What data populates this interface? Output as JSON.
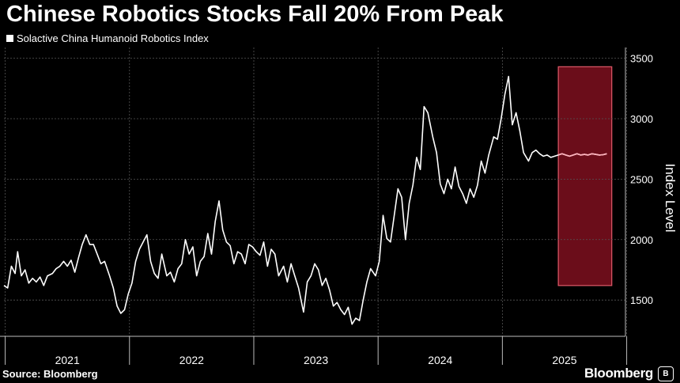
{
  "header": {
    "title": "Chinese Robotics Stocks Fall 20% From Peak",
    "legend_label": "Solactive China Humanoid Robotics Index"
  },
  "footer": {
    "source": "Source: Bloomberg",
    "brand": "Bloomberg",
    "brand_badge": "B"
  },
  "colors": {
    "line": "#ffffff",
    "highlight_fill": "#6b0d1a",
    "highlight_stroke": "#e05a6a",
    "highlight_line": "#ffb3bd"
  },
  "chart_data": {
    "type": "line",
    "title": "Chinese Robotics Stocks Fall 20% From Peak",
    "xlabel": "",
    "ylabel": "Index Level",
    "ylim": [
      1200,
      3550
    ],
    "xlim": [
      2020.99,
      2025.99
    ],
    "yticks": [
      1500,
      2000,
      2500,
      3000,
      3500
    ],
    "xticks": [
      {
        "label": "2021",
        "value": 2021.5
      },
      {
        "label": "2022",
        "value": 2022.5
      },
      {
        "label": "2023",
        "value": 2023.5
      },
      {
        "label": "2024",
        "value": 2024.5
      },
      {
        "label": "2025",
        "value": 2025.5
      }
    ],
    "year_boundaries": [
      2021,
      2022,
      2023,
      2024,
      2025,
      2026
    ],
    "grid": true,
    "legend": "top-left",
    "highlight": {
      "x0": 2025.45,
      "x1": 2025.88,
      "y0": 1620,
      "y1": 3430
    },
    "series": [
      {
        "name": "Solactive China Humanoid Robotics Index",
        "x": [
          2020.99,
          2021.02,
          2021.05,
          2021.08,
          2021.1,
          2021.13,
          2021.16,
          2021.19,
          2021.22,
          2021.25,
          2021.28,
          2021.31,
          2021.34,
          2021.38,
          2021.41,
          2021.44,
          2021.47,
          2021.5,
          2021.53,
          2021.56,
          2021.59,
          2021.62,
          2021.65,
          2021.68,
          2021.71,
          2021.74,
          2021.77,
          2021.8,
          2021.84,
          2021.87,
          2021.9,
          2021.93,
          2021.96,
          2021.99,
          2022.02,
          2022.05,
          2022.08,
          2022.11,
          2022.14,
          2022.17,
          2022.2,
          2022.23,
          2022.26,
          2022.3,
          2022.33,
          2022.36,
          2022.39,
          2022.42,
          2022.45,
          2022.48,
          2022.51,
          2022.54,
          2022.57,
          2022.6,
          2022.63,
          2022.66,
          2022.69,
          2022.72,
          2022.75,
          2022.78,
          2022.81,
          2022.84,
          2022.87,
          2022.9,
          2022.93,
          2022.96,
          2022.99,
          2023.02,
          2023.05,
          2023.08,
          2023.11,
          2023.14,
          2023.17,
          2023.2,
          2023.24,
          2023.27,
          2023.3,
          2023.33,
          2023.36,
          2023.4,
          2023.43,
          2023.46,
          2023.49,
          2023.52,
          2023.55,
          2023.58,
          2023.61,
          2023.64,
          2023.67,
          2023.7,
          2023.73,
          2023.76,
          2023.79,
          2023.82,
          2023.85,
          2023.88,
          2023.91,
          2023.94,
          2023.98,
          2024.01,
          2024.04,
          2024.07,
          2024.1,
          2024.13,
          2024.16,
          2024.19,
          2024.22,
          2024.25,
          2024.28,
          2024.31,
          2024.34,
          2024.37,
          2024.4,
          2024.44,
          2024.47,
          2024.5,
          2024.53,
          2024.56,
          2024.59,
          2024.62,
          2024.65,
          2024.68,
          2024.71,
          2024.74,
          2024.77,
          2024.8,
          2024.83,
          2024.86,
          2024.89,
          2024.93,
          2024.96,
          2024.99,
          2025.02,
          2025.05,
          2025.08,
          2025.11,
          2025.14,
          2025.17,
          2025.21,
          2025.24,
          2025.27,
          2025.3,
          2025.33,
          2025.36,
          2025.39,
          2025.42,
          2025.45,
          2025.48,
          2025.51,
          2025.54,
          2025.57,
          2025.6,
          2025.63,
          2025.66,
          2025.69,
          2025.72,
          2025.75,
          2025.78,
          2025.81,
          2025.84
        ],
        "values": [
          1620,
          1600,
          1780,
          1720,
          1900,
          1700,
          1750,
          1640,
          1680,
          1650,
          1690,
          1620,
          1700,
          1720,
          1760,
          1780,
          1820,
          1780,
          1830,
          1730,
          1850,
          1960,
          2040,
          1960,
          1960,
          1880,
          1800,
          1820,
          1700,
          1600,
          1450,
          1390,
          1420,
          1550,
          1640,
          1820,
          1920,
          1980,
          2040,
          1820,
          1720,
          1680,
          1880,
          1700,
          1730,
          1650,
          1760,
          1800,
          2000,
          1880,
          1940,
          1700,
          1820,
          1860,
          2050,
          1880,
          2150,
          2320,
          2080,
          1980,
          1950,
          1800,
          1900,
          1880,
          1800,
          1960,
          1940,
          1900,
          1870,
          1980,
          1780,
          1920,
          1880,
          1700,
          1780,
          1650,
          1800,
          1700,
          1600,
          1400,
          1650,
          1700,
          1800,
          1750,
          1620,
          1680,
          1580,
          1450,
          1480,
          1420,
          1380,
          1440,
          1300,
          1350,
          1330,
          1500,
          1650,
          1760,
          1700,
          1820,
          2200,
          2010,
          1980,
          2200,
          2420,
          2350,
          2000,
          2300,
          2450,
          2680,
          2580,
          3100,
          3050,
          2850,
          2720,
          2460,
          2380,
          2500,
          2420,
          2600,
          2440,
          2380,
          2300,
          2420,
          2350,
          2450,
          2650,
          2550,
          2700,
          2850,
          2830,
          3000,
          3200,
          3350,
          2950,
          3050,
          2900,
          2720,
          2650,
          2720,
          2740,
          2710,
          2690,
          2700,
          2680,
          2690,
          2700,
          2710,
          2700,
          2690,
          2700,
          2710,
          2700,
          2705,
          2700,
          2710,
          2705,
          2700,
          2702,
          2710
        ]
      }
    ]
  }
}
